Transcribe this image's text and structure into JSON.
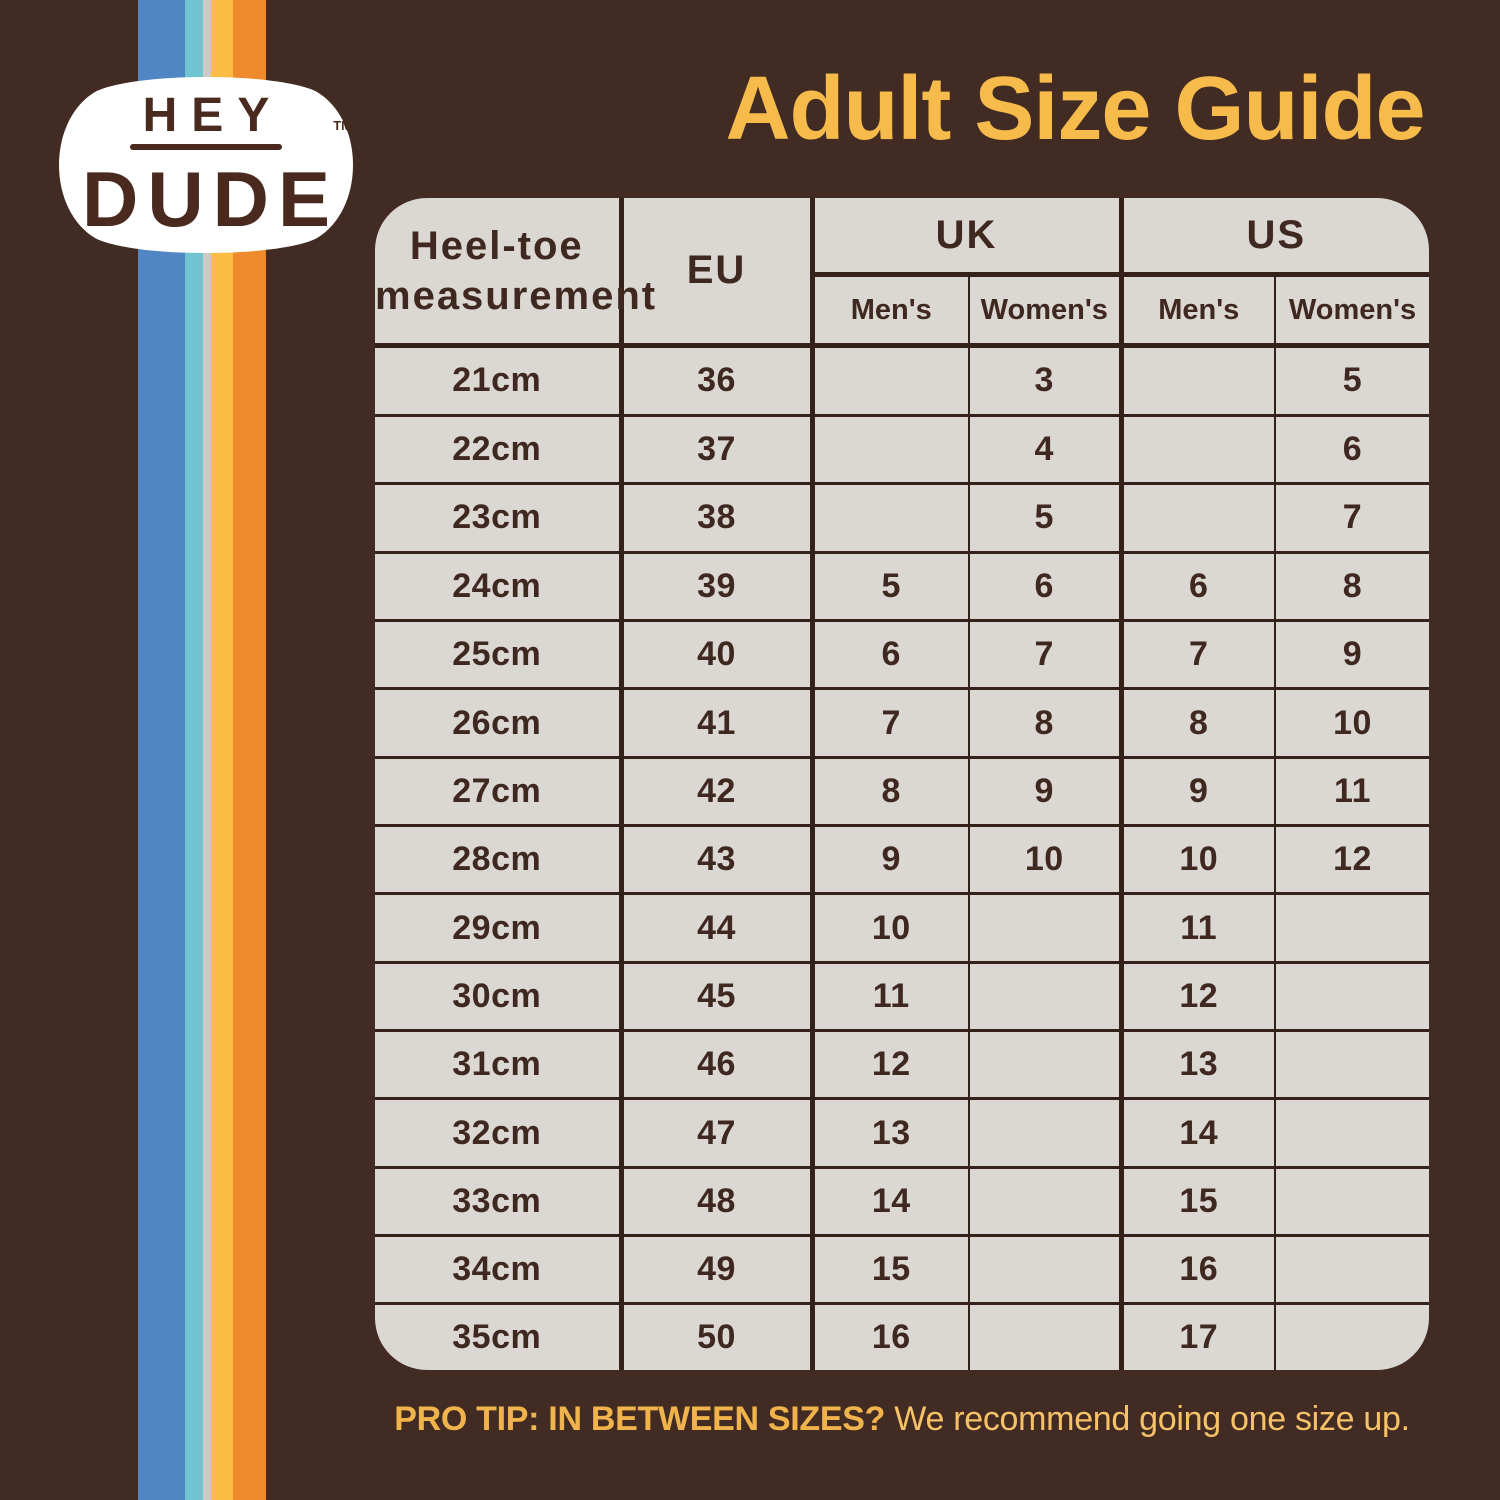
{
  "title": "Adult Size Guide",
  "logo": {
    "word1": "HEY",
    "word2": "DUDE",
    "trademark": "TM"
  },
  "colors": {
    "background": "#412b23",
    "panel": "#dbd7d2",
    "grid": "#33211a",
    "cell_text": "#3f2820",
    "title_gold": "#f7bb4b",
    "protip_bold": "#f1b44c",
    "protip_regular": "#f6c167",
    "logo_brown": "#4a2a1f",
    "logo_badge": "#ffffff"
  },
  "stripes": [
    {
      "name": "blue",
      "color": "#4f86c3"
    },
    {
      "name": "cyan",
      "color": "#70c3d1"
    },
    {
      "name": "white",
      "color": "#cecbc7"
    },
    {
      "name": "yellow",
      "color": "#fcbb42"
    },
    {
      "name": "orange",
      "color": "#ef8a2c"
    }
  ],
  "table": {
    "header": {
      "measurement_line1": "Heel-toe",
      "measurement_line2": "measurement",
      "eu": "EU",
      "uk": "UK",
      "us": "US",
      "mens": "Men's",
      "womens": "Women's"
    }
  },
  "protip": {
    "bold": "PRO TIP: IN BETWEEN SIZES?",
    "regular": "We recommend going one size up."
  },
  "chart_data": {
    "type": "table",
    "title": "Adult Size Guide",
    "columns": [
      "Heel-toe measurement",
      "EU",
      "UK Men's",
      "UK Women's",
      "US Men's",
      "US Women's"
    ],
    "rows": [
      [
        "21cm",
        "36",
        "",
        "3",
        "",
        "5"
      ],
      [
        "22cm",
        "37",
        "",
        "4",
        "",
        "6"
      ],
      [
        "23cm",
        "38",
        "",
        "5",
        "",
        "7"
      ],
      [
        "24cm",
        "39",
        "5",
        "6",
        "6",
        "8"
      ],
      [
        "25cm",
        "40",
        "6",
        "7",
        "7",
        "9"
      ],
      [
        "26cm",
        "41",
        "7",
        "8",
        "8",
        "10"
      ],
      [
        "27cm",
        "42",
        "8",
        "9",
        "9",
        "11"
      ],
      [
        "28cm",
        "43",
        "9",
        "10",
        "10",
        "12"
      ],
      [
        "29cm",
        "44",
        "10",
        "",
        "11",
        ""
      ],
      [
        "30cm",
        "45",
        "11",
        "",
        "12",
        ""
      ],
      [
        "31cm",
        "46",
        "12",
        "",
        "13",
        ""
      ],
      [
        "32cm",
        "47",
        "13",
        "",
        "14",
        ""
      ],
      [
        "33cm",
        "48",
        "14",
        "",
        "15",
        ""
      ],
      [
        "34cm",
        "49",
        "15",
        "",
        "16",
        ""
      ],
      [
        "35cm",
        "50",
        "16",
        "",
        "17",
        ""
      ]
    ]
  }
}
